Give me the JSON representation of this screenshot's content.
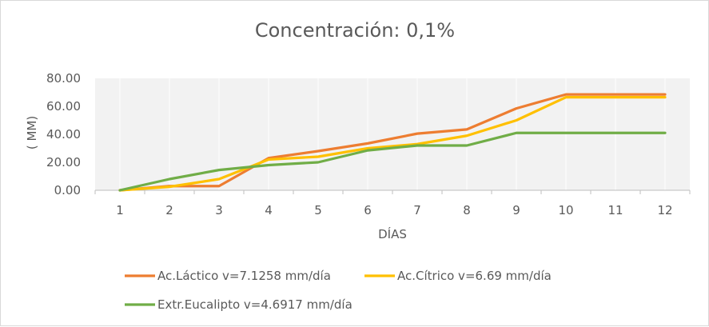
{
  "chart_data": {
    "type": "line",
    "title": "Concentración:  0,1%",
    "xlabel": "DÍAS",
    "ylabel": "( MM)",
    "categories": [
      "1",
      "2",
      "3",
      "4",
      "5",
      "6",
      "7",
      "8",
      "9",
      "10",
      "11",
      "12"
    ],
    "ylim": [
      0,
      80
    ],
    "yticks": [
      "0.00",
      "20.00",
      "40.00",
      "60.00",
      "80.00"
    ],
    "grid": "vertical",
    "legend_position": "bottom",
    "series": [
      {
        "name": "Ac.Láctico v=7.1258 mm/día",
        "color": "#ed7d31",
        "values": [
          0,
          3,
          3,
          23,
          28,
          33.5,
          40.5,
          43.5,
          58.5,
          68.5,
          68.5,
          68.5
        ]
      },
      {
        "name": "Ac.Cítrico v=6.69 mm/día",
        "color": "#ffc000",
        "values": [
          0,
          2.5,
          8,
          22,
          24,
          30,
          33,
          39,
          50,
          66.5,
          66.5,
          66.5
        ]
      },
      {
        "name": "Extr.Eucalipto v=4.6917 mm/día",
        "color": "#70ad47",
        "values": [
          0,
          8,
          14.5,
          18,
          20,
          28.5,
          32,
          32,
          41,
          41,
          41,
          41
        ]
      }
    ]
  }
}
